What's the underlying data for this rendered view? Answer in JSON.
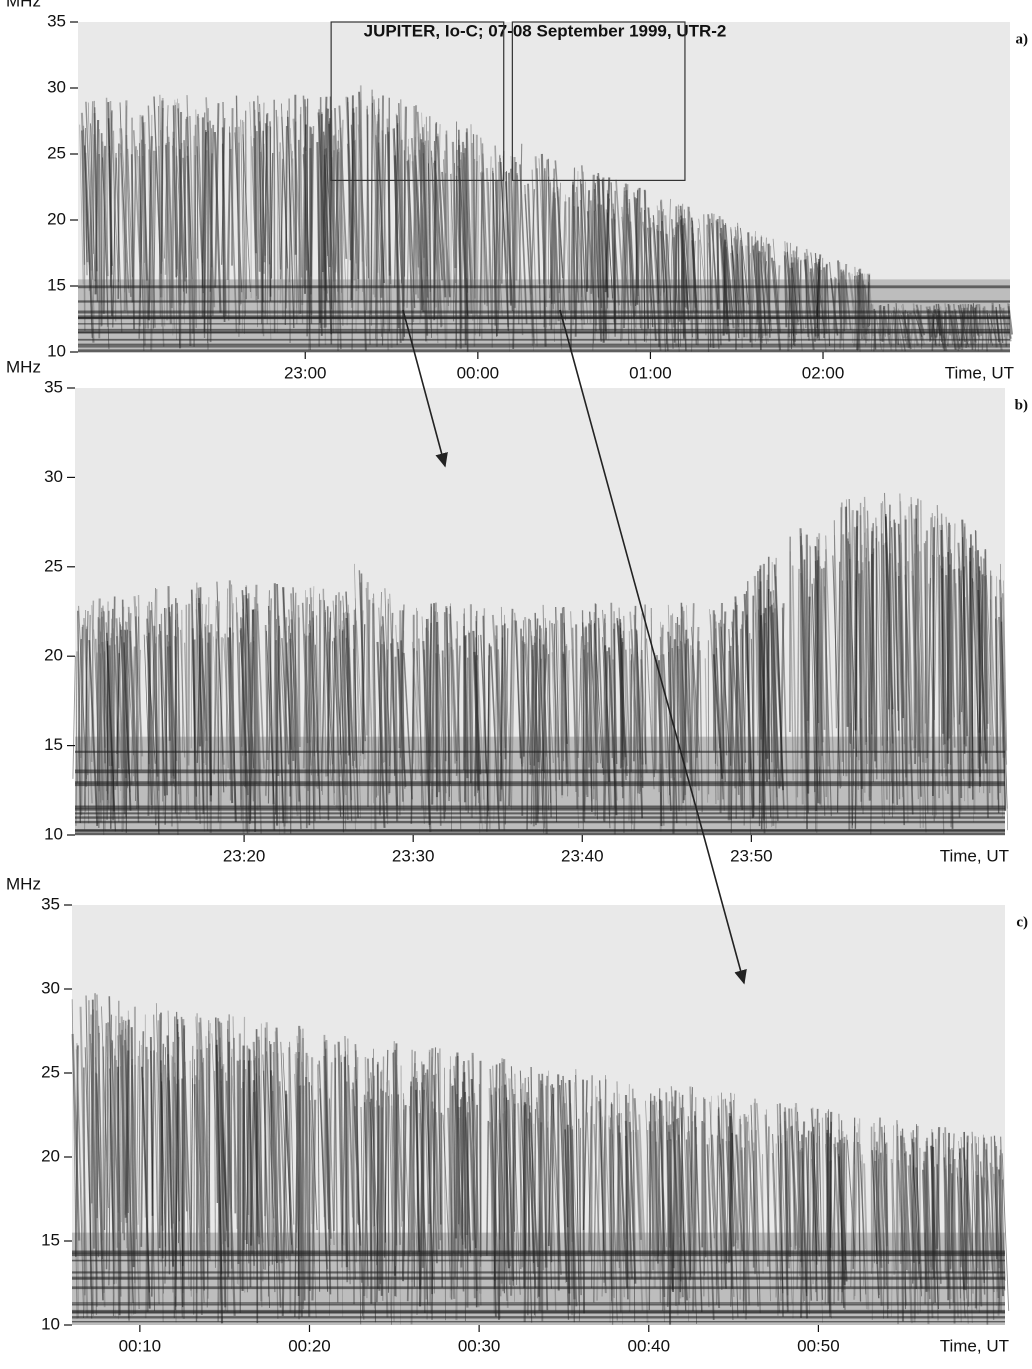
{
  "chart_data": [
    {
      "type": "spectrogram",
      "title": "JUPITER, Io-C;  07-08 September 1999, UTR-2",
      "panel_label": "a)",
      "y_label": "MHz",
      "x_label": "Time, UT",
      "ylim": [
        10,
        35
      ],
      "yticks": [
        10,
        15,
        20,
        25,
        30,
        35
      ],
      "xlim": [
        1301,
        1625
      ],
      "xticks": [
        {
          "value": 1380,
          "label": "23:00"
        },
        {
          "value": 1440,
          "label": "00:00"
        },
        {
          "value": 1500,
          "label": "01:00"
        },
        {
          "value": 1560,
          "label": "02:00"
        }
      ],
      "zoom_boxes": [
        {
          "x": [
            1389,
            1449
          ],
          "y": [
            23,
            35
          ]
        },
        {
          "x": [
            1452,
            1512
          ],
          "y": [
            23,
            35
          ]
        }
      ]
    },
    {
      "type": "spectrogram",
      "panel_label": "b)",
      "y_label": "MHz",
      "x_label": "Time, UT",
      "ylim": [
        10,
        35
      ],
      "yticks": [
        10,
        15,
        20,
        25,
        30,
        35
      ],
      "xlim": [
        1390,
        1445
      ],
      "xticks": [
        {
          "value": 1400,
          "label": "23:20"
        },
        {
          "value": 1410,
          "label": "23:30"
        },
        {
          "value": 1420,
          "label": "23:40"
        },
        {
          "value": 1430,
          "label": "23:50"
        }
      ]
    },
    {
      "type": "spectrogram",
      "panel_label": "c)",
      "y_label": "MHz",
      "x_label": "Time, UT",
      "ylim": [
        10,
        35
      ],
      "yticks": [
        10,
        15,
        20,
        25,
        30,
        35
      ],
      "xlim": [
        1446,
        1501
      ],
      "xticks": [
        {
          "value": 1450,
          "label": "00:10"
        },
        {
          "value": 1460,
          "label": "00:20"
        },
        {
          "value": 1470,
          "label": "00:30"
        },
        {
          "value": 1480,
          "label": "00:40"
        },
        {
          "value": 1490,
          "label": "00:50"
        }
      ]
    }
  ]
}
